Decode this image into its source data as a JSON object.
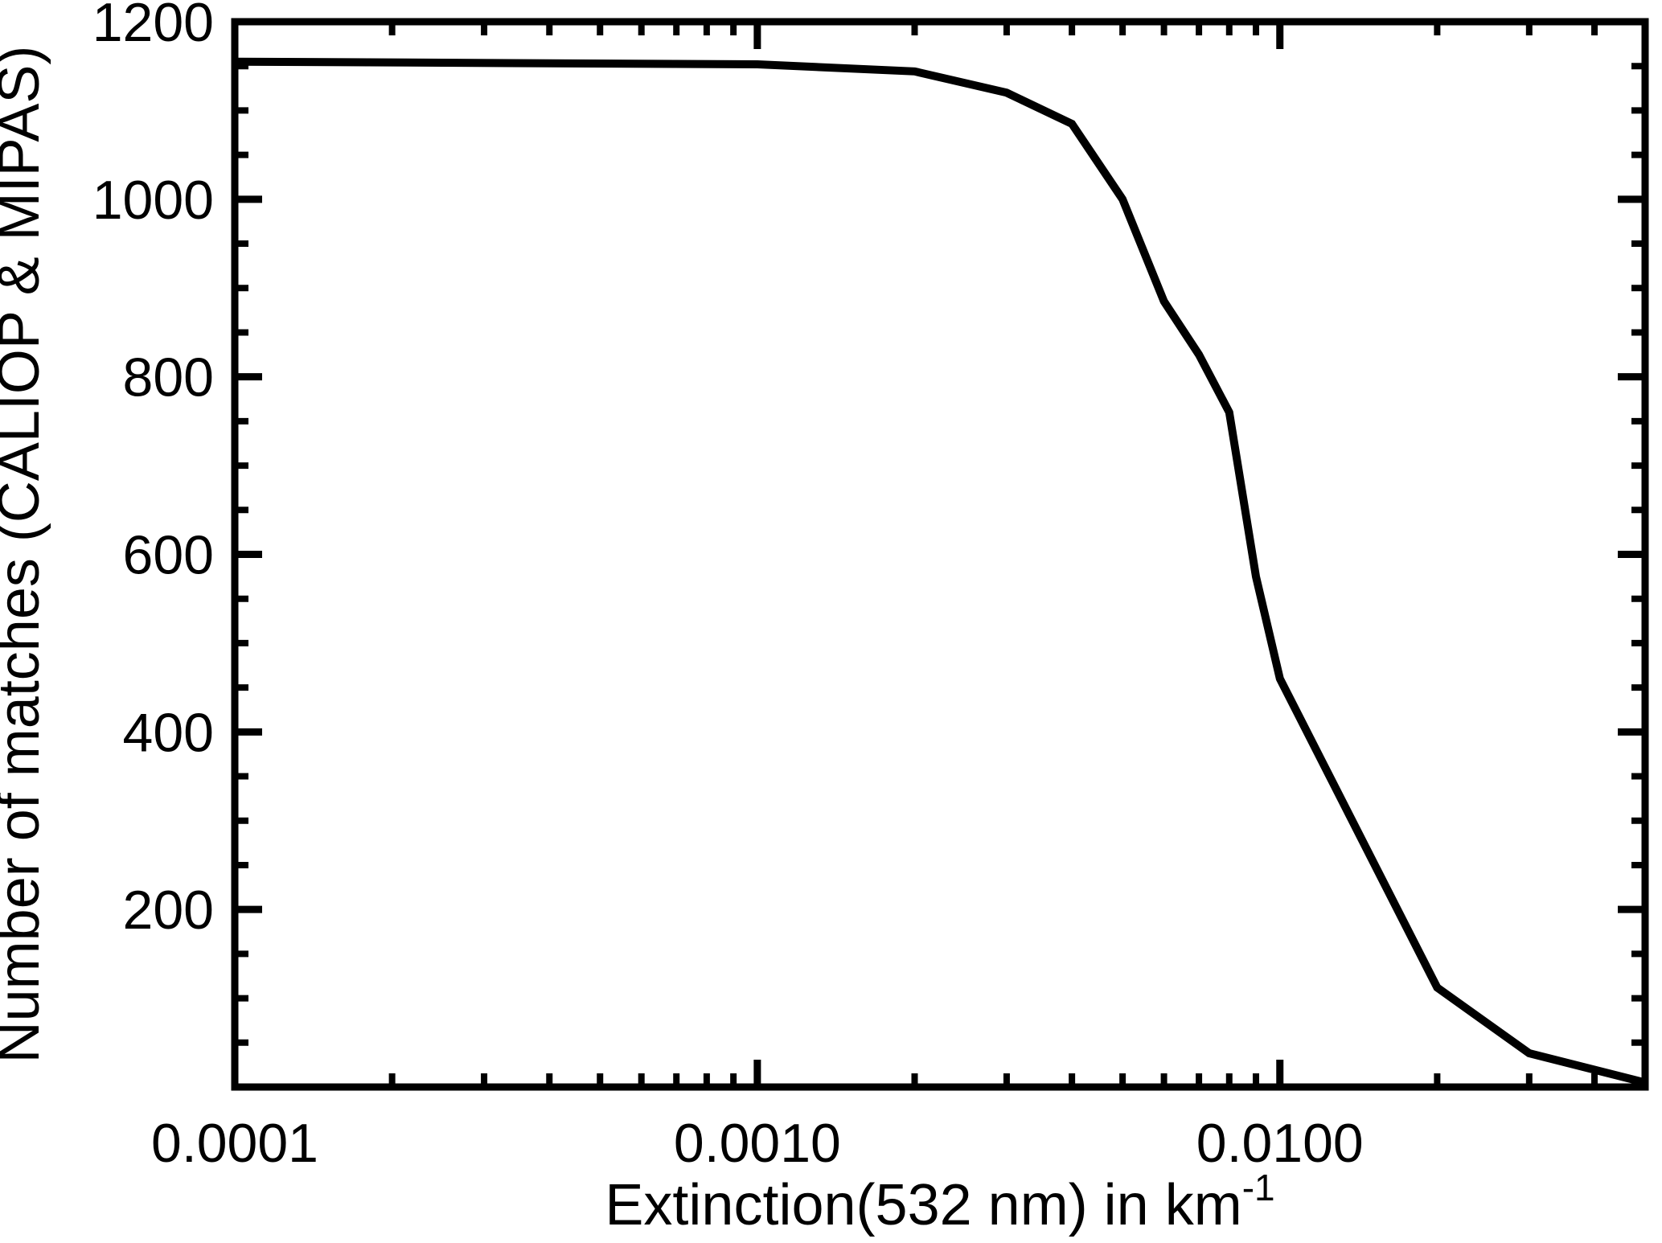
{
  "figure": {
    "background": "#ffffff",
    "line_color": "#000000",
    "text_color": "#000000"
  },
  "chart_data": {
    "type": "line",
    "title": "",
    "xlabel": "Extinction(532 nm) in km",
    "xlabel_superscript": "-1",
    "ylabel": "Number of matches (CALIOP & MIPAS)",
    "x_scale": "log",
    "y_scale": "linear",
    "xlim": [
      0.0001,
      0.05
    ],
    "ylim": [
      0,
      1200
    ],
    "grid": "off",
    "legend": "none",
    "series": [
      {
        "name": "Number of matches (CALIOP & MIPAS)",
        "x": [
          0.0001,
          0.001,
          0.002,
          0.003,
          0.004,
          0.005,
          0.006,
          0.007,
          0.008,
          0.009,
          0.01,
          0.02,
          0.03,
          0.05
        ],
        "values": [
          1155,
          1152,
          1144,
          1120,
          1085,
          1000,
          885,
          825,
          760,
          575,
          460,
          112,
          38,
          5
        ]
      }
    ],
    "x_major_ticks": [
      0.0001,
      0.001,
      0.01
    ],
    "x_major_tick_labels": [
      "0.0001",
      "0.0010",
      "0.0100"
    ],
    "y_major_ticks": [
      200,
      400,
      600,
      800,
      1000,
      1200
    ],
    "y_major_tick_labels": [
      "200",
      "400",
      "600",
      "800",
      "1000",
      "1200"
    ],
    "y_minor_step": 50
  }
}
